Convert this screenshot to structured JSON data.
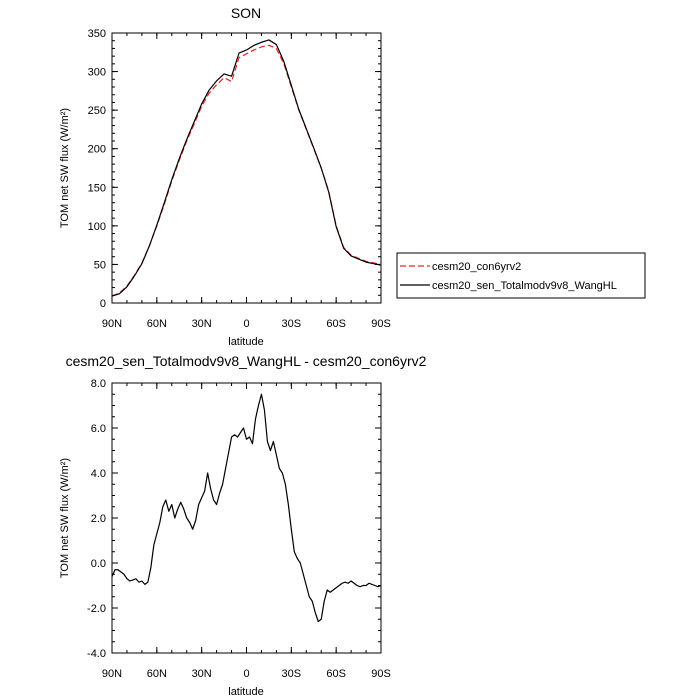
{
  "chart_data": [
    {
      "type": "line",
      "title": "SON",
      "xlabel": "latitude",
      "ylabel": "TOM net SW flux (W/m²)",
      "xlim": [
        90,
        -90
      ],
      "ylim": [
        0,
        350
      ],
      "x_tick_labels": [
        "90N",
        "60N",
        "30N",
        "0",
        "30S",
        "60S",
        "90S"
      ],
      "y_tick_labels": [
        "0",
        "50",
        "100",
        "150",
        "200",
        "250",
        "300",
        "350"
      ],
      "series": [
        {
          "name": "cesm20_con6yrv2",
          "color": "#e8262a",
          "dashed": true,
          "x": [
            90,
            85,
            80,
            75,
            70,
            65,
            60,
            55,
            50,
            45,
            40,
            35,
            30,
            25,
            20,
            15,
            10,
            5,
            0,
            -5,
            -10,
            -15,
            -20,
            -25,
            -30,
            -35,
            -40,
            -45,
            -50,
            -55,
            -60,
            -65,
            -70,
            -75,
            -80,
            -85,
            -90
          ],
          "y": [
            9,
            13,
            22,
            36,
            52,
            74,
            100,
            128,
            158,
            185,
            210,
            232,
            255,
            272,
            283,
            292,
            287,
            318,
            323,
            328,
            332,
            334,
            330,
            310,
            280,
            250,
            225,
            200,
            175,
            145,
            100,
            72,
            62,
            58,
            54,
            52,
            50
          ]
        },
        {
          "name": "cesm20_sen_Totalmodv9v8_WangHL",
          "color": "#000000",
          "dashed": false,
          "x": [
            90,
            85,
            80,
            75,
            70,
            65,
            60,
            55,
            50,
            45,
            40,
            35,
            30,
            25,
            20,
            15,
            10,
            5,
            0,
            -5,
            -10,
            -15,
            -20,
            -25,
            -30,
            -35,
            -40,
            -45,
            -50,
            -55,
            -60,
            -65,
            -70,
            -75,
            -80,
            -85,
            -90
          ],
          "y": [
            9,
            12,
            21,
            35,
            51,
            74,
            101,
            130,
            160,
            187,
            212,
            235,
            258,
            276,
            288,
            297,
            294,
            324,
            328,
            334,
            338,
            341,
            335,
            313,
            282,
            251,
            226,
            201,
            175,
            144,
            99,
            71,
            61,
            57,
            53,
            51,
            49
          ]
        }
      ],
      "legend": "right"
    },
    {
      "type": "line",
      "title": "cesm20_sen_Totalmodv9v8_WangHL - cesm20_con6yrv2",
      "xlabel": "latitude",
      "ylabel": "TOM net SW flux (W/m²)",
      "xlim": [
        90,
        -90
      ],
      "ylim": [
        -4,
        8
      ],
      "x_tick_labels": [
        "90N",
        "60N",
        "30N",
        "0",
        "30S",
        "60S",
        "90S"
      ],
      "y_tick_labels": [
        "-4.0",
        "-2.0",
        "0.0",
        "2.0",
        "4.0",
        "6.0",
        "8.0"
      ],
      "series": [
        {
          "color": "#000000",
          "x": [
            90,
            88,
            86,
            84,
            82,
            80,
            78,
            76,
            74,
            72,
            70,
            68,
            66,
            64,
            62,
            60,
            58,
            56,
            54,
            52,
            50,
            48,
            46,
            44,
            42,
            40,
            38,
            36,
            34,
            32,
            30,
            28,
            26,
            24,
            22,
            20,
            18,
            16,
            14,
            12,
            10,
            8,
            6,
            4,
            2,
            0,
            -2,
            -4,
            -6,
            -8,
            -10,
            -12,
            -14,
            -16,
            -18,
            -20,
            -22,
            -24,
            -26,
            -28,
            -30,
            -32,
            -34,
            -36,
            -38,
            -40,
            -42,
            -44,
            -46,
            -48,
            -50,
            -52,
            -54,
            -56,
            -58,
            -60,
            -62,
            -64,
            -66,
            -68,
            -70,
            -72,
            -74,
            -76,
            -78,
            -80,
            -82,
            -84,
            -86,
            -88,
            -90
          ],
          "y": [
            -0.6,
            -0.3,
            -0.3,
            -0.4,
            -0.5,
            -0.7,
            -0.8,
            -0.75,
            -0.7,
            -0.85,
            -0.8,
            -0.95,
            -0.85,
            -0.2,
            0.8,
            1.3,
            1.8,
            2.5,
            2.8,
            2.3,
            2.6,
            2.0,
            2.4,
            2.7,
            2.4,
            2.0,
            1.8,
            1.5,
            1.9,
            2.6,
            2.9,
            3.2,
            4.0,
            3.3,
            2.8,
            2.6,
            3.1,
            3.5,
            4.2,
            4.9,
            5.6,
            5.7,
            5.6,
            5.8,
            6.0,
            5.5,
            5.6,
            5.3,
            6.4,
            7.0,
            7.5,
            6.8,
            5.4,
            5.0,
            5.4,
            4.8,
            4.2,
            4.0,
            3.5,
            2.6,
            1.5,
            0.5,
            0.2,
            0.0,
            -0.5,
            -1.0,
            -1.5,
            -1.7,
            -2.2,
            -2.6,
            -2.5,
            -1.7,
            -1.2,
            -1.3,
            -1.2,
            -1.1,
            -1.0,
            -0.9,
            -0.85,
            -0.9,
            -0.8,
            -0.9,
            -1.0,
            -1.05,
            -1.0,
            -1.0,
            -0.9,
            -0.95,
            -1.0,
            -1.05,
            -1.0
          ]
        }
      ],
      "legend": "none"
    }
  ]
}
